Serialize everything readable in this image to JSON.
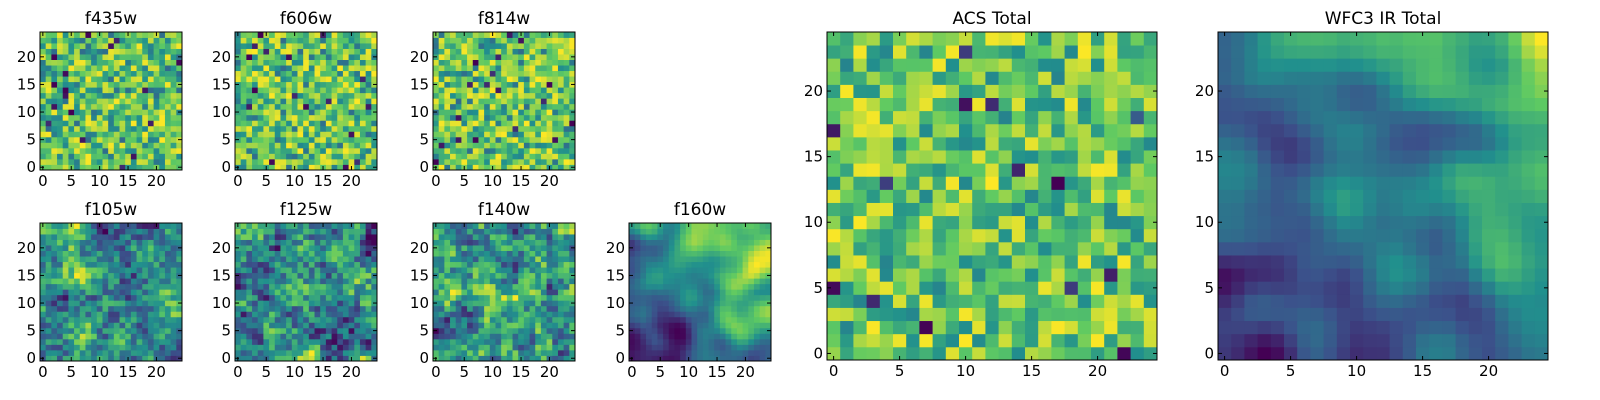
{
  "chart_data": [
    {
      "type": "heatmap",
      "title": "f435w",
      "grid_size": 25,
      "xticks": [
        "0",
        "5",
        "10",
        "15",
        "20"
      ],
      "yticks": [
        "0",
        "5",
        "10",
        "15",
        "20"
      ],
      "xlim": [
        -0.5,
        24.5
      ],
      "ylim": [
        -0.5,
        24.5
      ],
      "colormap": "viridis",
      "texture": "pixel-noise",
      "seed": 11
    },
    {
      "type": "heatmap",
      "title": "f606w",
      "grid_size": 25,
      "xticks": [
        "0",
        "5",
        "10",
        "15",
        "20"
      ],
      "yticks": [
        "0",
        "5",
        "10",
        "15",
        "20"
      ],
      "xlim": [
        -0.5,
        24.5
      ],
      "ylim": [
        -0.5,
        24.5
      ],
      "colormap": "viridis",
      "texture": "pixel-noise",
      "seed": 23
    },
    {
      "type": "heatmap",
      "title": "f814w",
      "grid_size": 25,
      "xticks": [
        "0",
        "5",
        "10",
        "15",
        "20"
      ],
      "yticks": [
        "0",
        "5",
        "10",
        "15",
        "20"
      ],
      "xlim": [
        -0.5,
        24.5
      ],
      "ylim": [
        -0.5,
        24.5
      ],
      "colormap": "viridis",
      "texture": "pixel-noise",
      "seed": 37
    },
    {
      "type": "heatmap",
      "title": "f105w",
      "grid_size": 25,
      "xticks": [
        "0",
        "5",
        "10",
        "15",
        "20"
      ],
      "yticks": [
        "0",
        "5",
        "10",
        "15",
        "20"
      ],
      "xlim": [
        -0.5,
        24.5
      ],
      "ylim": [
        -0.5,
        24.5
      ],
      "colormap": "viridis",
      "texture": "smooth-blobs",
      "seed": 41
    },
    {
      "type": "heatmap",
      "title": "f125w",
      "grid_size": 25,
      "xticks": [
        "0",
        "5",
        "10",
        "15",
        "20"
      ],
      "yticks": [
        "0",
        "5",
        "10",
        "15",
        "20"
      ],
      "xlim": [
        -0.5,
        24.5
      ],
      "ylim": [
        -0.5,
        24.5
      ],
      "colormap": "viridis",
      "texture": "smooth-blobs",
      "seed": 53
    },
    {
      "type": "heatmap",
      "title": "f140w",
      "grid_size": 25,
      "xticks": [
        "0",
        "5",
        "10",
        "15",
        "20"
      ],
      "yticks": [
        "0",
        "5",
        "10",
        "15",
        "20"
      ],
      "xlim": [
        -0.5,
        24.5
      ],
      "ylim": [
        -0.5,
        24.5
      ],
      "colormap": "viridis",
      "texture": "smooth-blobs",
      "seed": 67
    },
    {
      "type": "heatmap",
      "title": "f160w",
      "grid_size": 25,
      "xticks": [
        "0",
        "5",
        "10",
        "15",
        "20"
      ],
      "yticks": [
        "0",
        "5",
        "10",
        "15",
        "20"
      ],
      "xlim": [
        -0.5,
        24.5
      ],
      "ylim": [
        -0.5,
        24.5
      ],
      "colormap": "viridis",
      "texture": "smooth-gradient",
      "seed": 79
    },
    {
      "type": "heatmap",
      "title": "ACS Total",
      "grid_size": 25,
      "xticks": [
        "0",
        "5",
        "10",
        "15",
        "20"
      ],
      "yticks": [
        "0",
        "5",
        "10",
        "15",
        "20"
      ],
      "xlim": [
        -0.5,
        24.5
      ],
      "ylim": [
        -0.5,
        24.5
      ],
      "colormap": "viridis",
      "texture": "pixel-noise-bright",
      "seed": 83
    },
    {
      "type": "heatmap",
      "title": "WFC3 IR Total",
      "grid_size": 25,
      "xticks": [
        "0",
        "5",
        "10",
        "15",
        "20"
      ],
      "yticks": [
        "0",
        "5",
        "10",
        "15",
        "20"
      ],
      "xlim": [
        -0.5,
        24.5
      ],
      "ylim": [
        -0.5,
        24.5
      ],
      "colormap": "viridis",
      "texture": "smooth-gradient",
      "seed": 97
    }
  ],
  "colors": {
    "background": "#ffffff",
    "frame": "#000000",
    "viridis_stops": [
      "#440154",
      "#3b528b",
      "#21908d",
      "#5dc963",
      "#fde725"
    ]
  }
}
